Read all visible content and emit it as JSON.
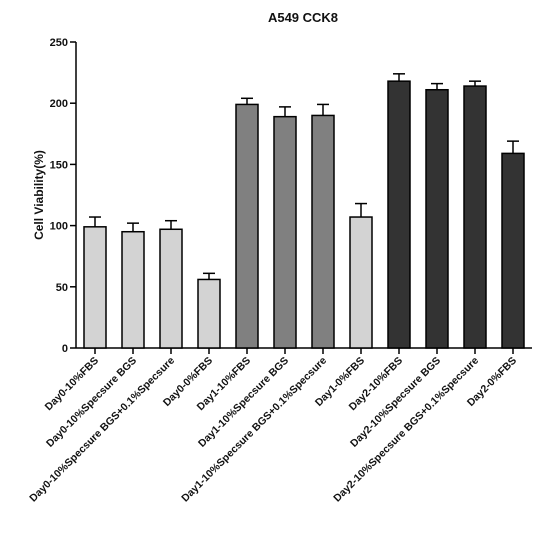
{
  "chart_data": {
    "type": "bar",
    "title": "A549 CCK8",
    "xlabel": "",
    "ylabel": "Cell Viability(%)",
    "ylim": [
      0,
      250
    ],
    "yticks": [
      0,
      50,
      100,
      150,
      200,
      250
    ],
    "grid": false,
    "legend": "none",
    "categories": [
      "Day0-10%FBS",
      "Day0-10%Specsure BGS",
      "Day0-10%Specsure BGS+0.1%Specsure",
      "Day0-0%FBS",
      "Day1-10%FBS",
      "Day1-10%Specsure BGS",
      "Day1-10%Specsure BGS+0.1%Specsure",
      "Day1-0%FBS",
      "Day2-10%FBS",
      "Day2-10%Specsure BGS",
      "Day2-10%Specsure BGS+0.1%Specsure",
      "Day2-0%FBS"
    ],
    "values": [
      99,
      95,
      97,
      56,
      199,
      189,
      190,
      107,
      218,
      211,
      214,
      159
    ],
    "errors": [
      8,
      7,
      7,
      5,
      5,
      8,
      9,
      11,
      6,
      5,
      4,
      10
    ],
    "bar_colors": [
      "#d3d3d3",
      "#d3d3d3",
      "#d3d3d3",
      "#d3d3d3",
      "#808080",
      "#808080",
      "#808080",
      "#d3d3d3",
      "#333333",
      "#333333",
      "#333333",
      "#333333"
    ]
  }
}
